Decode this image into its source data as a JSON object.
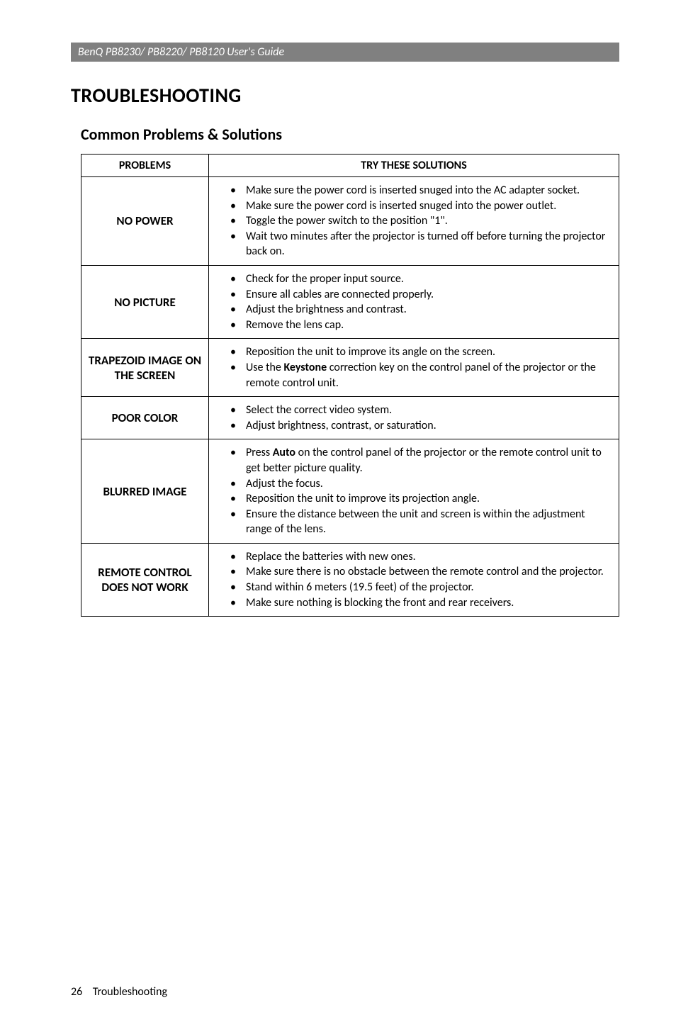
{
  "header": {
    "text": "BenQ PB8230/ PB8220/ PB8120 User's Guide"
  },
  "title": "TROUBLESHOOTING",
  "subtitle": "Common Problems & Solutions",
  "table": {
    "col_problems": "PROBLEMS",
    "col_solutions": "TRY THESE SOLUTIONS",
    "rows": [
      {
        "label": "NO POWER",
        "items": [
          "Make sure the power cord is inserted snuged into the AC adapter socket.",
          "Make sure the power cord is inserted snuged into the power outlet.",
          "Toggle the power switch to the position \"1\".",
          "Wait two minutes after the projector is turned off before turning the projector back on."
        ]
      },
      {
        "label": "NO PICTURE",
        "items": [
          "Check for the proper input source.",
          "Ensure all cables are connected properly.",
          "Adjust the brightness and contrast.",
          "Remove the lens cap."
        ]
      },
      {
        "label": "TRAPEZOID IMAGE ON THE SCREEN",
        "items": [
          "Reposition the unit to improve its angle on the screen.",
          {
            "pre": "Use the ",
            "bold": "Keystone",
            "post": " correction key on the control panel of the projector or the remote control unit."
          }
        ]
      },
      {
        "label": "POOR COLOR",
        "items": [
          "Select the correct video system.",
          "Adjust brightness, contrast, or saturation."
        ]
      },
      {
        "label": "BLURRED IMAGE",
        "items": [
          {
            "pre": "Press ",
            "bold": "Auto",
            "post": " on the control panel of the projector or the remote control unit to get better picture quality."
          },
          "Adjust the focus.",
          "Reposition the unit to improve its projection angle.",
          "Ensure the distance between the unit and screen is within the adjustment range of the lens."
        ]
      },
      {
        "label": "REMOTE CONTROL DOES NOT WORK",
        "items": [
          "Replace the batteries with new ones.",
          "Make sure there is no obstacle between the remote control and the projector.",
          "Stand within 6 meters (19.5 feet) of the projector.",
          "Make sure nothing is blocking the front and rear receivers."
        ]
      }
    ]
  },
  "footer": {
    "page": "26",
    "section": "Troubleshooting"
  }
}
